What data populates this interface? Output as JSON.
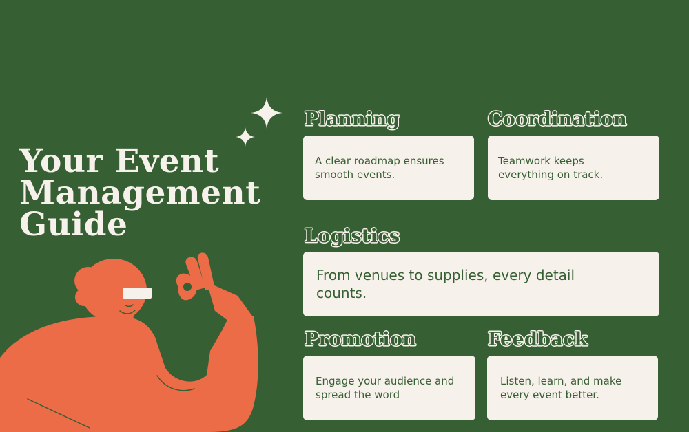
{
  "title": {
    "line1": "Your Event",
    "line2": "Management",
    "line3": "Guide"
  },
  "sections": {
    "planning": {
      "heading": "Planning",
      "text": "A clear roadmap ensures smooth events."
    },
    "coordination": {
      "heading": "Coordination",
      "text": "Teamwork keeps everything on track."
    },
    "logistics": {
      "heading": "Logistics",
      "text": "From venues to supplies, every detail counts."
    },
    "promotion": {
      "heading": "Promotion",
      "text": "Engage your audience and spread the word"
    },
    "feedback": {
      "heading": "Feedback",
      "text": "Listen, learn, and make every event better."
    }
  },
  "colors": {
    "background": "#375f34",
    "cream": "#f6f1ea",
    "figure": "#ec6c47"
  },
  "icons": {
    "sparkles": "sparkle-icon",
    "illustration": "person-ok-gesture-illustration"
  }
}
